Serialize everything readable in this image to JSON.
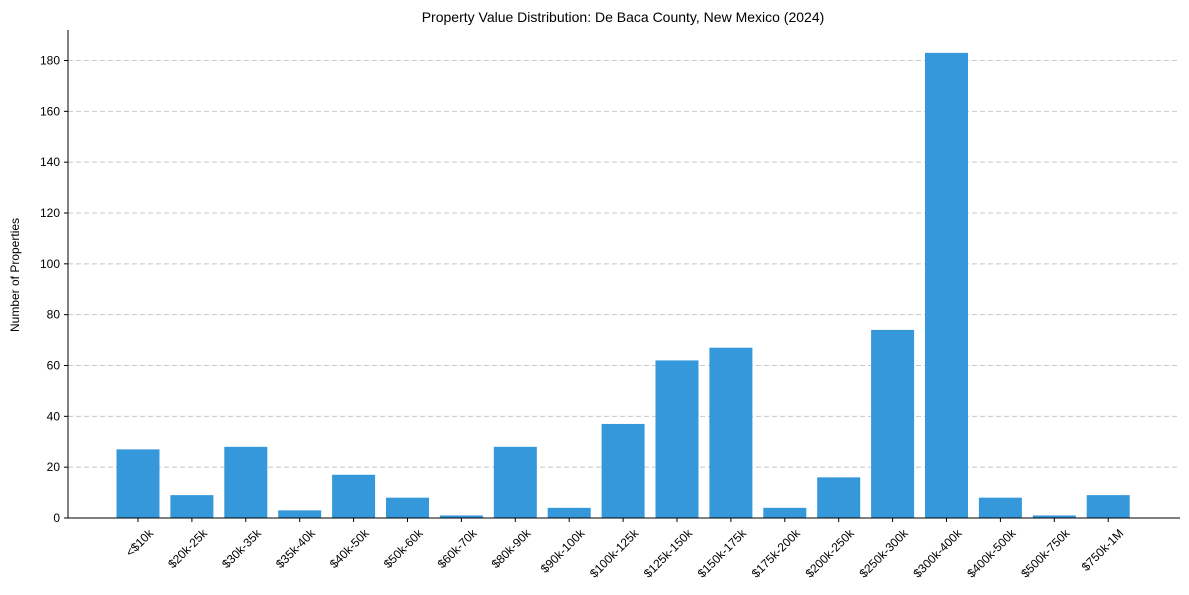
{
  "chart_data": {
    "type": "bar",
    "title": "Property Value Distribution: De Baca County, New Mexico (2024)",
    "xlabel": "",
    "ylabel": "Number of Properties",
    "categories": [
      "<$10k",
      "$20k-25k",
      "$30k-35k",
      "$35k-40k",
      "$40k-50k",
      "$50k-60k",
      "$60k-70k",
      "$80k-90k",
      "$90k-100k",
      "$100k-125k",
      "$125k-150k",
      "$150k-175k",
      "$175k-200k",
      "$200k-250k",
      "$250k-300k",
      "$300k-400k",
      "$400k-500k",
      "$500k-750k",
      "$750k-1M"
    ],
    "values": [
      27,
      9,
      28,
      3,
      17,
      8,
      1,
      28,
      4,
      37,
      62,
      67,
      4,
      16,
      74,
      183,
      8,
      1,
      9
    ],
    "ylim": [
      0,
      192
    ],
    "yticks": [
      0,
      20,
      40,
      60,
      80,
      100,
      120,
      140,
      160,
      180
    ],
    "grid": "y-dashed",
    "bar_color": "#3498db"
  }
}
